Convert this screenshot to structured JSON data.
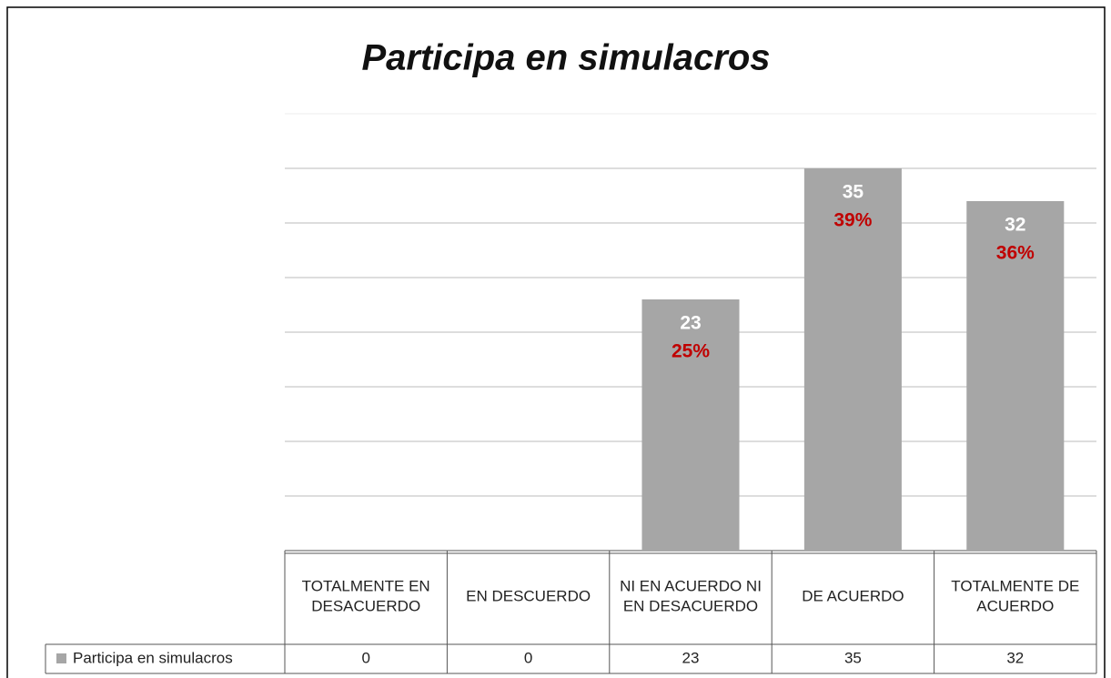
{
  "chart_data": {
    "type": "bar",
    "title": "Participa en simulacros",
    "categories": [
      "TOTALMENTE EN DESACUERDO",
      "EN DESCUERDO",
      "NI EN ACUERDO NI EN DESACUERDO",
      "DE ACUERDO",
      "TOTALMENTE  DE ACUERDO"
    ],
    "series": [
      {
        "name": "Participa en simulacros",
        "color": "#a6a6a6",
        "values": [
          0,
          0,
          23,
          35,
          32
        ],
        "percent_labels": [
          null,
          null,
          "25%",
          "39%",
          "36%"
        ]
      }
    ],
    "ylim": [
      0,
      40
    ],
    "yticks": [
      0,
      5,
      10,
      15,
      20,
      25,
      30,
      35,
      40
    ],
    "grid": true
  }
}
